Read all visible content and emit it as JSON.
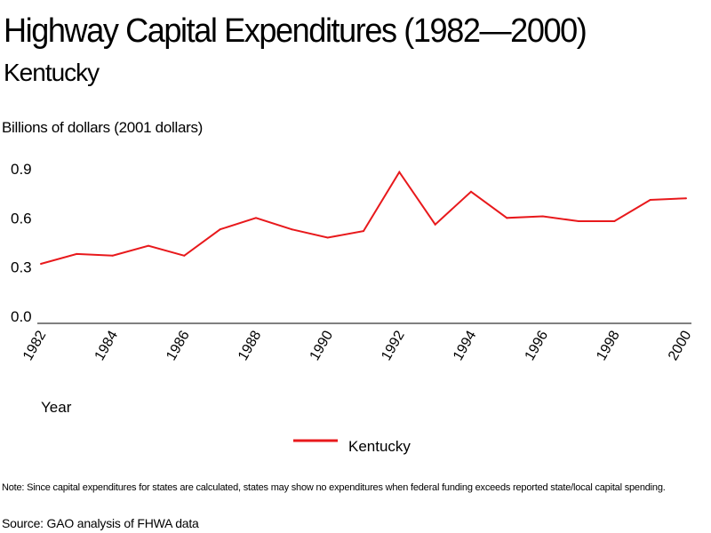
{
  "chart_data": {
    "type": "line",
    "title": "Highway Capital Expenditures (1982—2000)",
    "subtitle": "Kentucky",
    "ylabel": "Billions of dollars (2001 dollars)",
    "xlabel": "Year",
    "ylim": [
      0,
      0.9
    ],
    "yticks": [
      "0.0",
      "0.3",
      "0.6",
      "0.9"
    ],
    "ytick_values": [
      0,
      0.3,
      0.6,
      0.9
    ],
    "xticks": [
      "1982",
      "1984",
      "1986",
      "1988",
      "1990",
      "1992",
      "1994",
      "1996",
      "1998",
      "2000"
    ],
    "x": [
      1982,
      1983,
      1984,
      1985,
      1986,
      1987,
      1988,
      1989,
      1990,
      1991,
      1992,
      1993,
      1994,
      1995,
      1996,
      1997,
      1998,
      1999,
      2000
    ],
    "series": [
      {
        "name": "Kentucky",
        "color": "#e8191c",
        "values": [
          0.32,
          0.38,
          0.37,
          0.43,
          0.37,
          0.53,
          0.6,
          0.53,
          0.48,
          0.52,
          0.88,
          0.56,
          0.76,
          0.6,
          0.61,
          0.58,
          0.58,
          0.71,
          0.72
        ]
      }
    ],
    "grid": false,
    "legend": "bottom-center"
  },
  "note": "Note: Since capital expenditures for states are calculated, states may show no expenditures when federal funding exceeds reported state/local capital spending.",
  "source": "Source: GAO analysis of FHWA data"
}
